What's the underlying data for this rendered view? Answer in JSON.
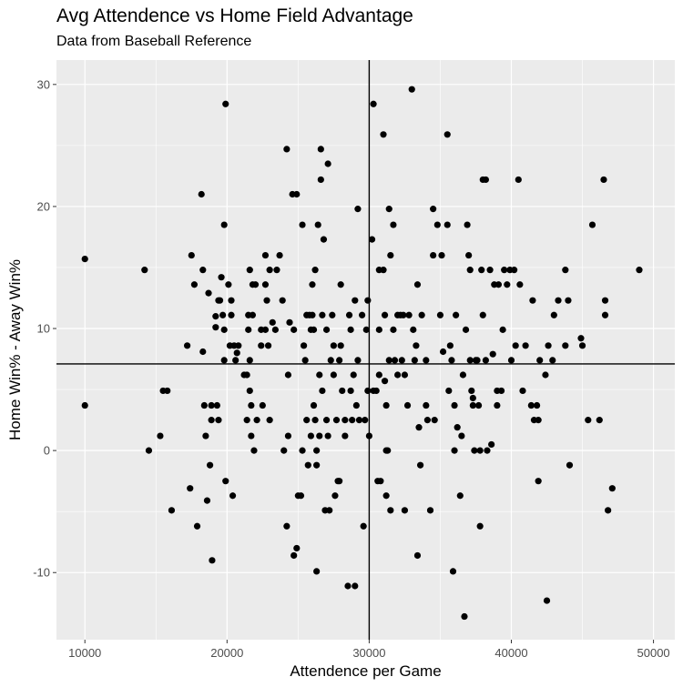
{
  "chart_data": {
    "type": "scatter",
    "title": "Avg Attendence vs Home Field Advantage",
    "subtitle": "Data from Baseball Reference",
    "xlabel": "Attendence per Game",
    "ylabel": "Home Win% - Away Win%",
    "xlim": [
      8000,
      51500
    ],
    "ylim": [
      -15.5,
      32
    ],
    "xticks": [
      10000,
      20000,
      30000,
      40000,
      50000
    ],
    "yticks": [
      -10,
      0,
      10,
      20,
      30
    ],
    "grid": true,
    "reference_lines": {
      "vertical_x": 30000,
      "horizontal_y": 7.1
    },
    "colors": {
      "panel": "#ebebeb",
      "grid": "#ffffff",
      "points": "#000000",
      "ref_lines": "#000000"
    },
    "points": [
      [
        10000,
        15.7
      ],
      [
        10000,
        3.7
      ],
      [
        14200,
        14.8
      ],
      [
        14500,
        0
      ],
      [
        15300,
        1.2
      ],
      [
        15500,
        4.9
      ],
      [
        15800,
        4.9
      ],
      [
        16100,
        -4.9
      ],
      [
        17200,
        8.6
      ],
      [
        17400,
        -3.1
      ],
      [
        17500,
        16.0
      ],
      [
        17700,
        13.6
      ],
      [
        17900,
        -6.2
      ],
      [
        18200,
        21.0
      ],
      [
        18300,
        14.8
      ],
      [
        18300,
        8.1
      ],
      [
        18400,
        3.7
      ],
      [
        18500,
        1.2
      ],
      [
        18600,
        -4.1
      ],
      [
        18700,
        12.9
      ],
      [
        18800,
        -1.2
      ],
      [
        18900,
        3.7
      ],
      [
        18900,
        2.5
      ],
      [
        18950,
        -9.0
      ],
      [
        19200,
        11.0
      ],
      [
        19200,
        10.1
      ],
      [
        19300,
        3.7
      ],
      [
        19400,
        2.5
      ],
      [
        19400,
        12.3
      ],
      [
        19500,
        12.3
      ],
      [
        19600,
        14.2
      ],
      [
        19700,
        11.1
      ],
      [
        19800,
        7.4
      ],
      [
        19800,
        9.9
      ],
      [
        19800,
        18.5
      ],
      [
        19900,
        28.4
      ],
      [
        19900,
        -2.5
      ],
      [
        20100,
        13.6
      ],
      [
        20200,
        8.6
      ],
      [
        20300,
        11.1
      ],
      [
        20300,
        12.3
      ],
      [
        20400,
        -3.7
      ],
      [
        20500,
        8.6
      ],
      [
        20600,
        7.4
      ],
      [
        20700,
        8.0
      ],
      [
        20800,
        8.6
      ],
      [
        21200,
        6.2
      ],
      [
        21400,
        6.2
      ],
      [
        21400,
        2.5
      ],
      [
        21500,
        11.1
      ],
      [
        21500,
        9.9
      ],
      [
        21600,
        14.8
      ],
      [
        21600,
        7.4
      ],
      [
        21600,
        4.9
      ],
      [
        21700,
        3.7
      ],
      [
        21700,
        1.2
      ],
      [
        21800,
        13.6
      ],
      [
        21800,
        11.1
      ],
      [
        21900,
        0
      ],
      [
        22000,
        13.6
      ],
      [
        22100,
        2.5
      ],
      [
        22400,
        8.6
      ],
      [
        22400,
        9.9
      ],
      [
        22500,
        3.7
      ],
      [
        22700,
        16.0
      ],
      [
        22700,
        13.6
      ],
      [
        22700,
        9.9
      ],
      [
        22800,
        12.3
      ],
      [
        22900,
        8.6
      ],
      [
        23000,
        14.8
      ],
      [
        23000,
        2.5
      ],
      [
        23200,
        10.5
      ],
      [
        23400,
        9.9
      ],
      [
        23500,
        14.8
      ],
      [
        23700,
        16.0
      ],
      [
        23900,
        12.3
      ],
      [
        24000,
        0
      ],
      [
        24200,
        24.7
      ],
      [
        24200,
        -6.2
      ],
      [
        24300,
        6.2
      ],
      [
        24300,
        1.2
      ],
      [
        24400,
        10.5
      ],
      [
        24600,
        21.0
      ],
      [
        24700,
        9.9
      ],
      [
        24700,
        -8.6
      ],
      [
        24900,
        -8.0
      ],
      [
        24900,
        21.0
      ],
      [
        25000,
        -3.7
      ],
      [
        25200,
        -3.7
      ],
      [
        25300,
        0
      ],
      [
        25300,
        18.5
      ],
      [
        25400,
        8.6
      ],
      [
        25500,
        7.4
      ],
      [
        25600,
        2.5
      ],
      [
        25600,
        11.1
      ],
      [
        25700,
        -1.2
      ],
      [
        25800,
        11.1
      ],
      [
        25900,
        1.2
      ],
      [
        25900,
        9.9
      ],
      [
        26000,
        13.6
      ],
      [
        26000,
        11.1
      ],
      [
        26100,
        9.9
      ],
      [
        26100,
        3.7
      ],
      [
        26200,
        14.8
      ],
      [
        26200,
        2.5
      ],
      [
        26300,
        0
      ],
      [
        26300,
        -1.2
      ],
      [
        26300,
        -9.9
      ],
      [
        26400,
        18.5
      ],
      [
        26500,
        1.2
      ],
      [
        26500,
        6.2
      ],
      [
        26600,
        24.7
      ],
      [
        26600,
        22.2
      ],
      [
        26700,
        11.1
      ],
      [
        26700,
        4.9
      ],
      [
        26800,
        17.3
      ],
      [
        26900,
        -4.9
      ],
      [
        27000,
        2.5
      ],
      [
        27000,
        9.9
      ],
      [
        27100,
        1.2
      ],
      [
        27100,
        23.5
      ],
      [
        27200,
        -4.9
      ],
      [
        27300,
        7.4
      ],
      [
        27400,
        11.1
      ],
      [
        27500,
        8.6
      ],
      [
        27500,
        6.2
      ],
      [
        27600,
        -3.7
      ],
      [
        27700,
        2.5
      ],
      [
        27800,
        -2.5
      ],
      [
        27900,
        7.4
      ],
      [
        27900,
        -2.5
      ],
      [
        28000,
        13.6
      ],
      [
        28000,
        8.6
      ],
      [
        28100,
        4.9
      ],
      [
        28300,
        1.2
      ],
      [
        28300,
        2.5
      ],
      [
        28500,
        -11.1
      ],
      [
        28600,
        11.1
      ],
      [
        28700,
        9.9
      ],
      [
        28700,
        4.9
      ],
      [
        28800,
        2.5
      ],
      [
        28900,
        6.2
      ],
      [
        29000,
        -11.1
      ],
      [
        29000,
        12.3
      ],
      [
        29100,
        3.7
      ],
      [
        29200,
        7.4
      ],
      [
        29200,
        19.8
      ],
      [
        29300,
        2.5
      ],
      [
        29500,
        11.1
      ],
      [
        29600,
        -6.2
      ],
      [
        29700,
        2.5
      ],
      [
        29800,
        9.9
      ],
      [
        29900,
        4.9
      ],
      [
        29900,
        12.3
      ],
      [
        30000,
        1.2
      ],
      [
        30200,
        17.3
      ],
      [
        30300,
        4.9
      ],
      [
        30300,
        28.4
      ],
      [
        30500,
        4.9
      ],
      [
        30600,
        -2.5
      ],
      [
        30700,
        14.8
      ],
      [
        30700,
        9.9
      ],
      [
        30700,
        6.2
      ],
      [
        30800,
        -2.5
      ],
      [
        31000,
        14.8
      ],
      [
        31000,
        25.9
      ],
      [
        31100,
        5.7
      ],
      [
        31100,
        11.1
      ],
      [
        31200,
        3.7
      ],
      [
        31200,
        0
      ],
      [
        31200,
        -3.7
      ],
      [
        31300,
        0
      ],
      [
        31400,
        7.4
      ],
      [
        31400,
        19.8
      ],
      [
        31500,
        -4.9
      ],
      [
        31500,
        16.0
      ],
      [
        31700,
        18.5
      ],
      [
        31700,
        9.9
      ],
      [
        31800,
        7.4
      ],
      [
        32000,
        6.2
      ],
      [
        32000,
        11.1
      ],
      [
        32200,
        11.1
      ],
      [
        32300,
        7.4
      ],
      [
        32400,
        11.1
      ],
      [
        32500,
        6.2
      ],
      [
        32500,
        -4.9
      ],
      [
        32700,
        3.7
      ],
      [
        32800,
        11.1
      ],
      [
        33000,
        29.6
      ],
      [
        33100,
        9.9
      ],
      [
        33200,
        7.4
      ],
      [
        33300,
        8.6
      ],
      [
        33400,
        -8.6
      ],
      [
        33400,
        13.6
      ],
      [
        33500,
        1.9
      ],
      [
        33600,
        -1.2
      ],
      [
        33700,
        11.1
      ],
      [
        34000,
        7.4
      ],
      [
        34000,
        3.7
      ],
      [
        34100,
        2.5
      ],
      [
        34300,
        -4.9
      ],
      [
        34500,
        19.8
      ],
      [
        34500,
        16.0
      ],
      [
        34600,
        2.5
      ],
      [
        34800,
        18.5
      ],
      [
        35000,
        11.1
      ],
      [
        35100,
        16.0
      ],
      [
        35200,
        8.1
      ],
      [
        35500,
        25.9
      ],
      [
        35500,
        18.5
      ],
      [
        35600,
        4.9
      ],
      [
        35700,
        8.6
      ],
      [
        35800,
        7.4
      ],
      [
        35900,
        -9.9
      ],
      [
        36000,
        0
      ],
      [
        36000,
        3.7
      ],
      [
        36100,
        11.1
      ],
      [
        36200,
        1.9
      ],
      [
        36400,
        -3.7
      ],
      [
        36500,
        1.2
      ],
      [
        36600,
        6.2
      ],
      [
        36700,
        -13.6
      ],
      [
        36800,
        9.9
      ],
      [
        36900,
        18.5
      ],
      [
        37000,
        16.0
      ],
      [
        37100,
        14.8
      ],
      [
        37100,
        7.4
      ],
      [
        37200,
        4.9
      ],
      [
        37300,
        4.3
      ],
      [
        37300,
        3.7
      ],
      [
        37400,
        0
      ],
      [
        37500,
        7.4
      ],
      [
        37600,
        7.4
      ],
      [
        37700,
        3.7
      ],
      [
        37800,
        0
      ],
      [
        37800,
        -6.2
      ],
      [
        37900,
        14.8
      ],
      [
        38000,
        22.2
      ],
      [
        38000,
        11.1
      ],
      [
        38200,
        22.2
      ],
      [
        38200,
        7.4
      ],
      [
        38300,
        0
      ],
      [
        38500,
        14.8
      ],
      [
        38600,
        0.5
      ],
      [
        38700,
        7.9
      ],
      [
        38800,
        13.6
      ],
      [
        39000,
        4.9
      ],
      [
        39000,
        3.7
      ],
      [
        39100,
        13.6
      ],
      [
        39300,
        4.9
      ],
      [
        39400,
        9.9
      ],
      [
        39500,
        14.8
      ],
      [
        39700,
        13.6
      ],
      [
        39900,
        14.8
      ],
      [
        40000,
        7.4
      ],
      [
        40200,
        14.8
      ],
      [
        40300,
        8.6
      ],
      [
        40500,
        22.2
      ],
      [
        40600,
        13.6
      ],
      [
        40800,
        4.9
      ],
      [
        41000,
        8.6
      ],
      [
        41400,
        3.7
      ],
      [
        41500,
        12.3
      ],
      [
        41600,
        2.5
      ],
      [
        41800,
        3.7
      ],
      [
        41900,
        2.5
      ],
      [
        41900,
        -2.5
      ],
      [
        42000,
        7.4
      ],
      [
        42400,
        6.2
      ],
      [
        42500,
        -12.3
      ],
      [
        42600,
        8.6
      ],
      [
        42900,
        7.4
      ],
      [
        43000,
        11.1
      ],
      [
        43300,
        12.3
      ],
      [
        43800,
        8.6
      ],
      [
        43800,
        14.8
      ],
      [
        44000,
        12.3
      ],
      [
        44100,
        -1.2
      ],
      [
        44900,
        9.2
      ],
      [
        45000,
        8.6
      ],
      [
        45400,
        2.5
      ],
      [
        45700,
        18.5
      ],
      [
        46200,
        2.5
      ],
      [
        46500,
        22.2
      ],
      [
        46600,
        12.3
      ],
      [
        46600,
        11.1
      ],
      [
        46800,
        -4.9
      ],
      [
        47100,
        -3.1
      ],
      [
        49000,
        14.8
      ]
    ]
  }
}
